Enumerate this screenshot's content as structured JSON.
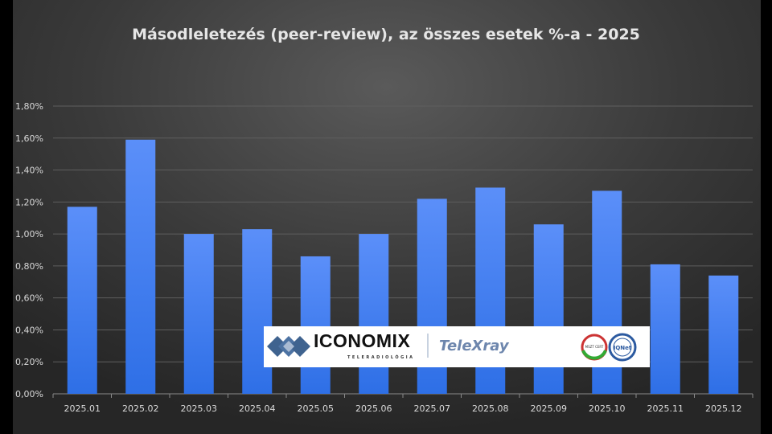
{
  "chart_data": {
    "type": "bar",
    "title": "Másodleletezés (peer-review), az összes esetek %-a - 2025",
    "categories": [
      "2025.01",
      "2025.02",
      "2025.03",
      "2025.04",
      "2025.05",
      "2025.06",
      "2025.07",
      "2025.08",
      "2025.09",
      "2025.10",
      "2025.11",
      "2025.12"
    ],
    "values": [
      1.17,
      1.59,
      1.0,
      1.03,
      0.86,
      1.0,
      1.22,
      1.29,
      1.06,
      1.27,
      0.81,
      0.74
    ],
    "unit": "%",
    "ylim": [
      0,
      1.8
    ],
    "yticks": [
      "0,00%",
      "0,20%",
      "0,40%",
      "0,60%",
      "0,80%",
      "1,00%",
      "1,20%",
      "1,40%",
      "1,60%",
      "1,80%"
    ],
    "xlabel": "",
    "ylabel": "",
    "grid": true,
    "colors": {
      "bar_top": "#5b8ff9",
      "bar_bottom": "#2e6fe6",
      "background": "#3a3a3a",
      "text": "#d9d9d9"
    }
  },
  "logo": {
    "brand": "ICONOMIX",
    "subtitle": "TELERADIOLÓGIA",
    "product": "TeleXray",
    "cert1": "MSZT CERT",
    "cert2": "IQNet"
  }
}
